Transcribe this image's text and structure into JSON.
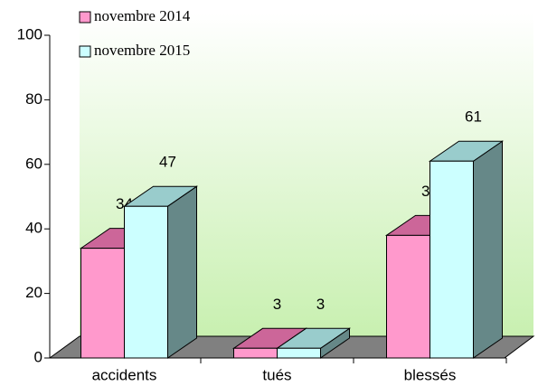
{
  "chart_data": {
    "type": "bar3d",
    "categories": [
      "accidents",
      "tués",
      "blessés"
    ],
    "series": [
      {
        "name": "novembre 2014",
        "color": "#ff99cc",
        "top": "#cc6699",
        "side": "#aa5580",
        "values": [
          34,
          3,
          38
        ]
      },
      {
        "name": "novembre 2015",
        "color": "#ccffff",
        "top": "#99cccc",
        "side": "#668888",
        "values": [
          47,
          3,
          61
        ]
      }
    ],
    "ylim": [
      0,
      100
    ],
    "yticks": [
      0,
      20,
      40,
      60,
      80,
      100
    ]
  }
}
